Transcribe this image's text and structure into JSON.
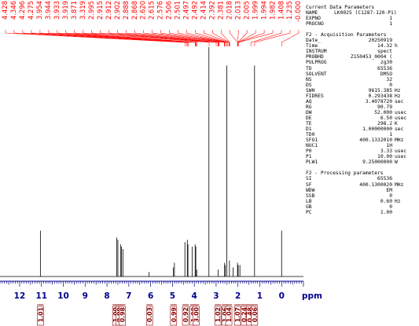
{
  "chart_data": {
    "type": "nmr-spectrum",
    "xlabel": "ppm",
    "xlim": [
      12.9,
      -1.0
    ],
    "x_ticks": [
      {
        "value": 12,
        "label": "12"
      },
      {
        "value": 11,
        "label": "11"
      },
      {
        "value": 10,
        "label": "10"
      },
      {
        "value": 9,
        "label": "9"
      },
      {
        "value": 8,
        "label": "8"
      },
      {
        "value": 7,
        "label": "7"
      },
      {
        "value": 6,
        "label": "6"
      },
      {
        "value": 5,
        "label": "5"
      },
      {
        "value": 4,
        "label": "4"
      },
      {
        "value": 3,
        "label": "3"
      },
      {
        "value": 2,
        "label": "2"
      },
      {
        "value": 1,
        "label": "1"
      },
      {
        "value": 0,
        "label": "0"
      }
    ],
    "peaks": [
      {
        "shift": 11.05,
        "height": 0.2
      },
      {
        "shift": 7.55,
        "height": 0.17
      },
      {
        "shift": 7.5,
        "height": 0.16
      },
      {
        "shift": 7.38,
        "height": 0.14
      },
      {
        "shift": 7.34,
        "height": 0.13
      },
      {
        "shift": 7.27,
        "height": 0.12
      },
      {
        "shift": 6.07,
        "height": 0.02
      },
      {
        "shift": 4.96,
        "height": 0.04
      },
      {
        "shift": 4.91,
        "height": 0.06
      },
      {
        "shift": 4.43,
        "height": 0.15
      },
      {
        "shift": 4.32,
        "height": 0.16
      },
      {
        "shift": 4.29,
        "height": 0.14
      },
      {
        "shift": 4.1,
        "height": 0.13
      },
      {
        "shift": 3.96,
        "height": 0.14
      },
      {
        "shift": 3.93,
        "height": 0.13
      },
      {
        "shift": 3.89,
        "height": 0.03
      },
      {
        "shift": 3.33,
        "height": 1.0
      },
      {
        "shift": 2.91,
        "height": 0.03
      },
      {
        "shift": 2.61,
        "height": 0.06
      },
      {
        "shift": 2.58,
        "height": 0.05
      },
      {
        "shift": 2.51,
        "height": 0.92
      },
      {
        "shift": 2.39,
        "height": 0.07
      },
      {
        "shift": 2.22,
        "height": 0.04
      },
      {
        "shift": 2.02,
        "height": 0.06
      },
      {
        "shift": 1.99,
        "height": 0.05
      },
      {
        "shift": 1.91,
        "height": 0.05
      },
      {
        "shift": 1.24,
        "height": 0.92
      },
      {
        "shift": 0.0,
        "height": 0.2
      }
    ],
    "peak_labels": [
      "4.428",
      "4.346",
      "4.296",
      "4.275",
      "3.954",
      "3.944",
      "3.933",
      "3.919",
      "3.871",
      "3.319",
      "2.995",
      "2.915",
      "2.912",
      "2.902",
      "2.888",
      "2.868",
      "2.620",
      "2.615",
      "2.576",
      "2.506",
      "2.501",
      "2.497",
      "2.492",
      "2.414",
      "2.392",
      "2.381",
      "2.018",
      "2.013",
      "2.005",
      "1.999",
      "1.994",
      "1.982",
      "1.408",
      "1.235",
      "-0.000"
    ],
    "integrals": [
      {
        "center": 11.05,
        "value": "1.01"
      },
      {
        "center": 7.6,
        "value": "1.00"
      },
      {
        "center": 7.44,
        "value": "0.99"
      },
      {
        "center": 7.3,
        "value": "0.98"
      },
      {
        "center": 6.05,
        "value": "0.03"
      },
      {
        "center": 4.95,
        "value": "0.99"
      },
      {
        "center": 4.4,
        "value": "0.92"
      },
      {
        "center": 4.05,
        "value": "1.00"
      },
      {
        "center": 3.92,
        "value": "3.00"
      },
      {
        "center": 2.92,
        "value": "1.02"
      },
      {
        "center": 2.6,
        "value": "1.06"
      },
      {
        "center": 2.42,
        "value": "1.04"
      },
      {
        "center": 2.02,
        "value": "1.07"
      },
      {
        "center": 1.72,
        "value": "0.24"
      },
      {
        "center": 1.46,
        "value": "0.48"
      },
      {
        "center": 1.24,
        "value": "0.06"
      }
    ],
    "colors": {
      "spectrum": "#000000",
      "labels": "#ff0000",
      "axis": "#00008b",
      "integral": "#8b0000"
    }
  },
  "parameters": {
    "sections": [
      {
        "title": "Current Data Parameters",
        "rows": [
          {
            "k": "NAME",
            "v": "LK0025 (C1287-120-P1)",
            "u": ""
          },
          {
            "k": "EXPNO",
            "v": "1",
            "u": ""
          },
          {
            "k": "PROCNO",
            "v": "1",
            "u": ""
          }
        ]
      },
      {
        "title": "F2 - Acquisition Parameters",
        "rows": [
          {
            "k": "Date_",
            "v": "20250919",
            "u": ""
          },
          {
            "k": "Time",
            "v": "14.32",
            "u": "h"
          },
          {
            "k": "INSTRUM",
            "v": "spect",
            "u": ""
          },
          {
            "k": "PROBHD",
            "v": "Z150453_0004 (",
            "u": ""
          },
          {
            "k": "PULPROG",
            "v": "zg30",
            "u": ""
          },
          {
            "k": "TD",
            "v": "65536",
            "u": ""
          },
          {
            "k": "SOLVENT",
            "v": "DMSO",
            "u": ""
          },
          {
            "k": "NS",
            "v": "32",
            "u": ""
          },
          {
            "k": "DS",
            "v": "0",
            "u": ""
          },
          {
            "k": "SWH",
            "v": "9615.385",
            "u": "Hz"
          },
          {
            "k": "FIDRES",
            "v": "0.293438",
            "u": "Hz"
          },
          {
            "k": "AQ",
            "v": "3.4078720",
            "u": "sec"
          },
          {
            "k": "RG",
            "v": "90.79",
            "u": ""
          },
          {
            "k": "DW",
            "v": "52.000",
            "u": "usec"
          },
          {
            "k": "DE",
            "v": "6.50",
            "u": "usec"
          },
          {
            "k": "TE",
            "v": "298.2",
            "u": "K"
          },
          {
            "k": "D1",
            "v": "1.00000000",
            "u": "sec"
          },
          {
            "k": "TD0",
            "v": "1",
            "u": ""
          },
          {
            "k": "SFO1",
            "v": "400.1332010",
            "u": "MHz"
          },
          {
            "k": "NUC1",
            "v": "1H",
            "u": ""
          },
          {
            "k": "P0",
            "v": "3.33",
            "u": "usec"
          },
          {
            "k": "P1",
            "v": "10.00",
            "u": "usec"
          },
          {
            "k": "PLW1",
            "v": "9.25000000",
            "u": "W"
          }
        ]
      },
      {
        "title": "F2 - Processing parameters",
        "rows": [
          {
            "k": "SI",
            "v": "65536",
            "u": ""
          },
          {
            "k": "SF",
            "v": "400.1300020",
            "u": "MHz"
          },
          {
            "k": "WDW",
            "v": "EM",
            "u": ""
          },
          {
            "k": "SSB",
            "v": "0",
            "u": ""
          },
          {
            "k": "LB",
            "v": "0.60",
            "u": "Hz"
          },
          {
            "k": "GB",
            "v": "0",
            "u": ""
          },
          {
            "k": "PC",
            "v": "1.00",
            "u": ""
          }
        ]
      }
    ]
  }
}
